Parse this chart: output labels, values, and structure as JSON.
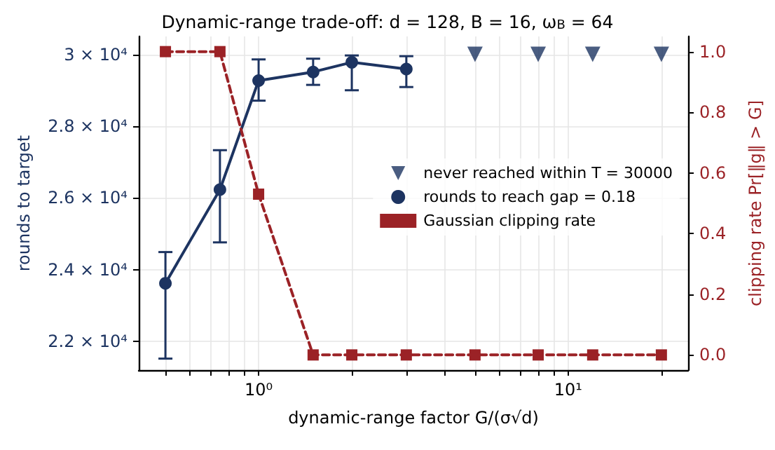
{
  "chart_data": {
    "type": "line",
    "title": "Dynamic-range trade-off: d = 128, B = 16, ω$_{B}$ = 64",
    "xlabel": "dynamic-range factor G/(σ√d)",
    "ylabel": "rounds to target",
    "y2label": "clipping rate Pr[‖g‖ > G]",
    "log": "x",
    "grid": true,
    "legend": "right",
    "xlim": [
      0.41,
      24.4
    ],
    "xticks": [
      {
        "value": 0.5,
        "label": null
      },
      {
        "value": 0.6,
        "label": null
      },
      {
        "value": 0.7,
        "label": null
      },
      {
        "value": 0.8,
        "label": null
      },
      {
        "value": 0.9,
        "label": null
      },
      {
        "value": 1,
        "label": "10⁰"
      },
      {
        "value": 2,
        "label": null
      },
      {
        "value": 3,
        "label": null
      },
      {
        "value": 4,
        "label": null
      },
      {
        "value": 5,
        "label": null
      },
      {
        "value": 6,
        "label": null
      },
      {
        "value": 7,
        "label": null
      },
      {
        "value": 8,
        "label": null
      },
      {
        "value": 9,
        "label": null
      },
      {
        "value": 10,
        "label": "10¹"
      },
      {
        "value": 20,
        "label": null
      }
    ],
    "ylim": [
      21200,
      30500
    ],
    "yticks": [
      {
        "value": 22000,
        "label": "2.2 × 10⁴"
      },
      {
        "value": 24000,
        "label": "2.4 × 10⁴"
      },
      {
        "value": 26000,
        "label": "2.6 × 10⁴"
      },
      {
        "value": 28000,
        "label": "2.8 × 10⁴"
      },
      {
        "value": 30000,
        "label": "3 × 10⁴"
      }
    ],
    "y2lim": [
      -0.05,
      1.05
    ],
    "y2ticks": [
      {
        "value": 0,
        "label": "0.0"
      },
      {
        "value": 0.2,
        "label": "0.2"
      },
      {
        "value": 0.4,
        "label": "0.4"
      },
      {
        "value": 0.6,
        "label": "0.6"
      },
      {
        "value": 0.8,
        "label": "0.8"
      },
      {
        "value": 1,
        "label": "1.0"
      }
    ],
    "series": [
      {
        "name": "never reached within T = 30000",
        "type": "scatter",
        "marker": "triangle",
        "color": "#1d3461",
        "x": [
          5,
          8,
          12,
          20
        ],
        "values": [
          30000,
          30000,
          30000,
          30000
        ]
      },
      {
        "name": "rounds to reach gap = 0.18",
        "marker": "circle",
        "line_style": "solid",
        "color": "#1d3461",
        "x": [
          0.5,
          0.75,
          1,
          1.5,
          2,
          3
        ],
        "values": [
          23620,
          26230,
          29270,
          29510,
          29780,
          29590
        ],
        "errors": [
          [
            21520,
            24490
          ],
          [
            24760,
            27330
          ],
          [
            28710,
            29860
          ],
          [
            29150,
            29880
          ],
          [
            29000,
            29970
          ],
          [
            29090,
            29950
          ]
        ]
      },
      {
        "name": "Gaussian clipping rate",
        "axis": "y2",
        "marker": "square",
        "line_style": "dashed",
        "color": "#9b2226",
        "x": [
          0.5,
          0.75,
          1,
          1.5,
          2,
          3,
          5,
          8,
          12,
          20
        ],
        "values": [
          1,
          1,
          0.53,
          0,
          0,
          0,
          0,
          0,
          0,
          0
        ]
      }
    ]
  }
}
